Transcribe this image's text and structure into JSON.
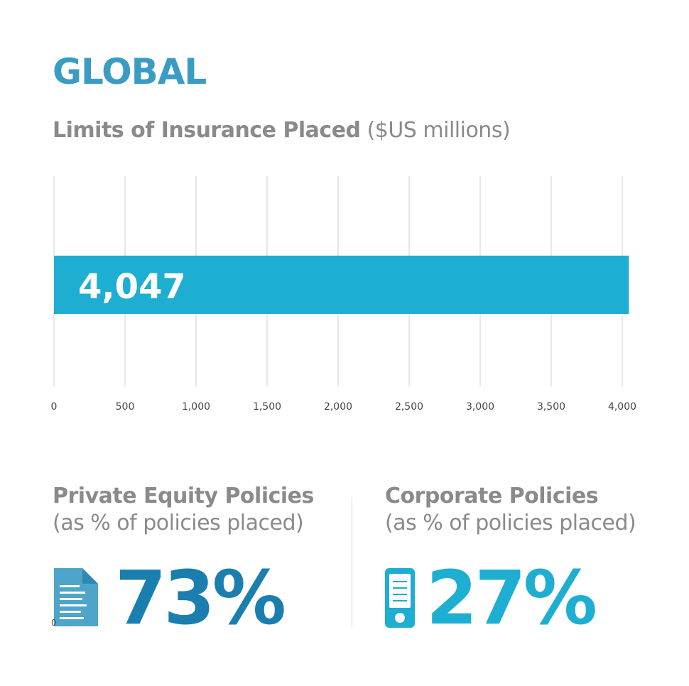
{
  "header": {
    "title": "GLOBAL",
    "subtitle_strong": "Limits of Insurance Placed",
    "subtitle_unit": "($US millions)"
  },
  "chart_data": {
    "type": "bar",
    "orientation": "horizontal",
    "categories": [
      ""
    ],
    "values": [
      4047
    ],
    "data_labels": [
      "4,047"
    ],
    "xlim": [
      0,
      4000
    ],
    "xticks": [
      0,
      500,
      1000,
      1500,
      2000,
      2500,
      3000,
      3500,
      4000
    ],
    "xtick_labels": [
      "0",
      "500",
      "1,000",
      "1,500",
      "2,000",
      "2,500",
      "3,000",
      "3,500",
      "4,000"
    ],
    "grid": true,
    "bar_color": "#1eaed1"
  },
  "left_stat": {
    "heading": "Private Equity Policies",
    "subheading": "(as % of policies placed)",
    "value": "73%",
    "fraction": 0.73,
    "icon": "document-icon",
    "color": "#1a7fae",
    "stray_label": "0"
  },
  "right_stat": {
    "heading": "Corporate Policies",
    "subheading": "(as % of policies placed)",
    "value": "27%",
    "fraction": 0.27,
    "icon": "phone-icon",
    "color": "#1eaed1"
  }
}
